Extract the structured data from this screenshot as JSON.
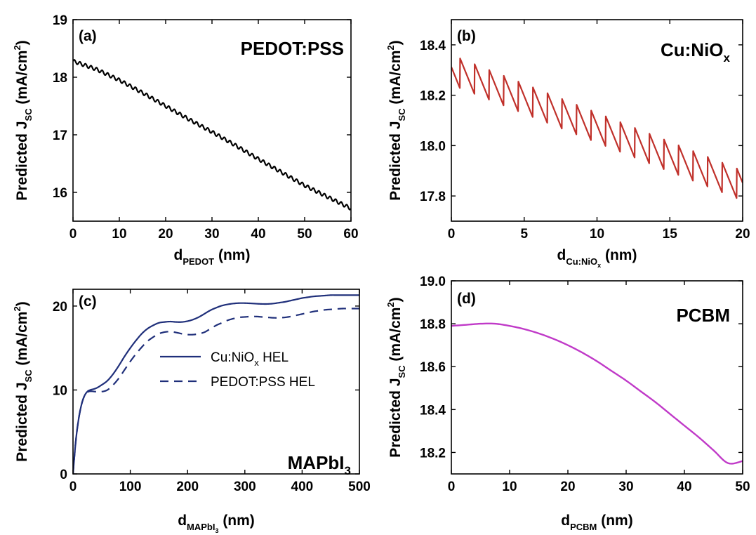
{
  "chart_data": [
    {
      "id": "a",
      "type": "line",
      "panel_label": "(a)",
      "material_label": "PEDOT:PSS",
      "xlabel": {
        "main": "d",
        "sub": "PEDOT",
        "unit": "(nm)"
      },
      "ylabel": {
        "main": "Predicted J",
        "sub": "SC",
        "unit": "(mA/cm",
        "sup": "2",
        "close": ")"
      },
      "xlim": [
        0,
        60
      ],
      "ylim": [
        15.5,
        19
      ],
      "xticks": [
        0,
        10,
        20,
        30,
        40,
        50,
        60
      ],
      "yticks": [
        16,
        17,
        18,
        19
      ],
      "grid": false,
      "series": [
        {
          "color": "#000000",
          "dash": false,
          "x": [
            0,
            5,
            10,
            15,
            20,
            25,
            30,
            35,
            40,
            45,
            50,
            55,
            60
          ],
          "y": [
            18.28,
            18.14,
            17.95,
            17.73,
            17.5,
            17.27,
            17.05,
            16.82,
            16.58,
            16.35,
            16.12,
            15.92,
            15.72
          ],
          "oscillation": {
            "amplitude": 0.03,
            "period": 1.2
          }
        }
      ]
    },
    {
      "id": "b",
      "type": "line",
      "panel_label": "(b)",
      "material_label": "Cu:NiO",
      "material_sub": "x",
      "xlabel": {
        "main": "d",
        "sub": "Cu:NiO",
        "subsub": "x",
        "unit": "(nm)"
      },
      "ylabel": {
        "main": "Predicted J",
        "sub": "SC",
        "unit": "(mA/cm",
        "sup": "2",
        "close": ")"
      },
      "xlim": [
        0,
        20
      ],
      "ylim": [
        17.7,
        18.5
      ],
      "xticks": [
        0,
        5,
        10,
        15,
        20
      ],
      "yticks": [
        17.8,
        18.0,
        18.2,
        18.4
      ],
      "grid": false,
      "series": [
        {
          "color": "#c0302a",
          "dash": false,
          "x": [
            0,
            5,
            10,
            15,
            20
          ],
          "y": [
            18.3,
            18.185,
            18.07,
            17.955,
            17.84
          ],
          "sawtooth": {
            "amplitude": 0.12,
            "period": 1.0,
            "phase": 0.4
          }
        }
      ]
    },
    {
      "id": "c",
      "type": "line",
      "panel_label": "(c)",
      "material_label": "MAPbI",
      "material_sub": "3",
      "xlabel": {
        "main": "d",
        "sub": "MAPbI",
        "subsub": "3",
        "unit": "(nm)"
      },
      "ylabel": {
        "main": "Predicted J",
        "sub": "SC",
        "unit": "(mA/cm",
        "sup": "2",
        "close": ")"
      },
      "xlim": [
        0,
        500
      ],
      "ylim": [
        0,
        22
      ],
      "xticks": [
        0,
        100,
        200,
        300,
        400,
        500
      ],
      "yticks": [
        0,
        10,
        20
      ],
      "grid": false,
      "legend": "center-left",
      "series": [
        {
          "name": "Cu:NiO",
          "name_sub": "x",
          "name_suffix": " HEL",
          "color": "#1f2f7a",
          "dash": false,
          "x": [
            0,
            5,
            10,
            15,
            20,
            25,
            30,
            40,
            50,
            60,
            70,
            80,
            90,
            100,
            110,
            120,
            130,
            140,
            150,
            160,
            170,
            180,
            190,
            200,
            210,
            220,
            230,
            240,
            250,
            260,
            270,
            280,
            290,
            300,
            310,
            320,
            330,
            340,
            350,
            360,
            370,
            380,
            390,
            400,
            410,
            420,
            430,
            440,
            450,
            460,
            470,
            480,
            490,
            500
          ],
          "y": [
            0,
            4.0,
            6.6,
            8.3,
            9.3,
            9.8,
            10.0,
            10.2,
            10.6,
            11.1,
            11.9,
            12.9,
            14.0,
            15.0,
            15.9,
            16.7,
            17.3,
            17.7,
            18.0,
            18.1,
            18.15,
            18.1,
            18.1,
            18.2,
            18.4,
            18.7,
            19.1,
            19.5,
            19.8,
            20.05,
            20.2,
            20.3,
            20.35,
            20.35,
            20.32,
            20.28,
            20.25,
            20.25,
            20.3,
            20.4,
            20.5,
            20.65,
            20.8,
            20.95,
            21.05,
            21.15,
            21.2,
            21.25,
            21.3,
            21.3,
            21.3,
            21.3,
            21.3,
            21.3
          ]
        },
        {
          "name": "PEDOT:PSS HEL",
          "color": "#1f2f7a",
          "dash": true,
          "x": [
            0,
            5,
            10,
            15,
            20,
            25,
            30,
            40,
            50,
            60,
            70,
            80,
            90,
            100,
            110,
            120,
            130,
            140,
            150,
            160,
            170,
            180,
            190,
            200,
            210,
            220,
            230,
            240,
            250,
            260,
            270,
            280,
            290,
            300,
            310,
            320,
            330,
            340,
            350,
            360,
            370,
            380,
            390,
            400,
            410,
            420,
            430,
            440,
            450,
            460,
            470,
            480,
            490,
            500
          ],
          "y": [
            0,
            4.0,
            6.6,
            8.3,
            9.3,
            9.7,
            9.85,
            9.8,
            9.8,
            10.0,
            10.6,
            11.4,
            12.4,
            13.4,
            14.3,
            15.1,
            15.8,
            16.3,
            16.7,
            16.9,
            16.95,
            16.85,
            16.7,
            16.6,
            16.6,
            16.7,
            16.9,
            17.3,
            17.7,
            18.0,
            18.3,
            18.5,
            18.65,
            18.7,
            18.75,
            18.75,
            18.7,
            18.65,
            18.6,
            18.6,
            18.65,
            18.75,
            18.9,
            19.05,
            19.2,
            19.35,
            19.45,
            19.55,
            19.6,
            19.65,
            19.7,
            19.7,
            19.7,
            19.7
          ]
        }
      ]
    },
    {
      "id": "d",
      "type": "line",
      "panel_label": "(d)",
      "material_label": "PCBM",
      "xlabel": {
        "main": "d",
        "sub": "PCBM",
        "unit": "(nm)"
      },
      "ylabel": {
        "main": "Predicted J",
        "sub": "SC",
        "unit": "(mA/cm",
        "sup": "2",
        "close": ")"
      },
      "xlim": [
        0,
        50
      ],
      "ylim": [
        18.1,
        19.0
      ],
      "xticks": [
        0,
        10,
        20,
        30,
        40,
        50
      ],
      "yticks": [
        18.2,
        18.4,
        18.6,
        18.8,
        19.0
      ],
      "grid": false,
      "series": [
        {
          "color": "#c03ac8",
          "dash": false,
          "x": [
            0,
            2.5,
            5,
            7.5,
            10,
            12.5,
            15,
            17.5,
            20,
            22.5,
            25,
            27.5,
            30,
            32.5,
            35,
            37.5,
            40,
            42.5,
            45,
            47.5,
            50
          ],
          "y": [
            18.79,
            18.795,
            18.8,
            18.8,
            18.79,
            18.775,
            18.755,
            18.73,
            18.7,
            18.665,
            18.625,
            18.58,
            18.535,
            18.485,
            18.435,
            18.38,
            18.325,
            18.27,
            18.21,
            18.15,
            18.16
          ]
        }
      ]
    }
  ]
}
